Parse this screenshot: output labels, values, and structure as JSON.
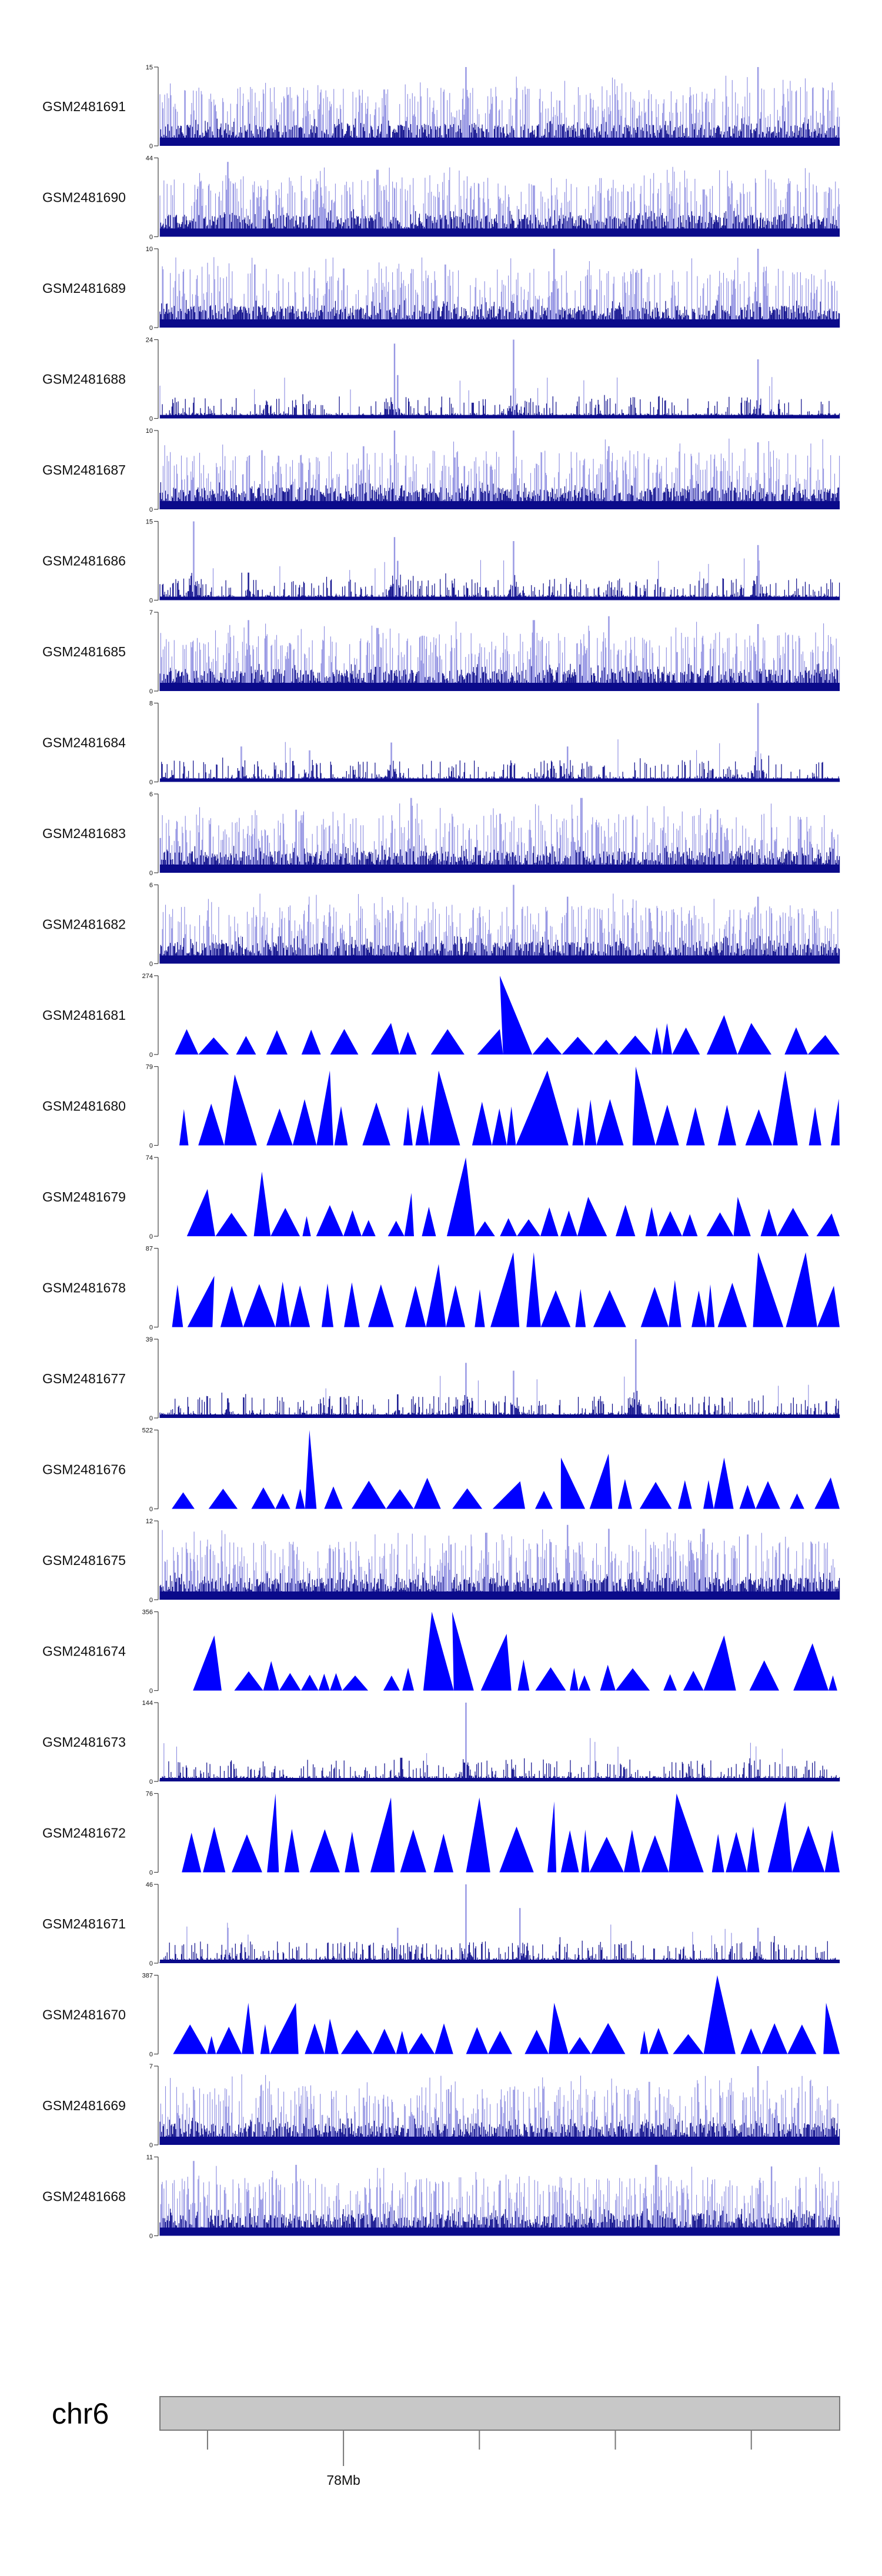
{
  "colors": {
    "dense": "#0a0a8a",
    "dense_light": "#8a8ae0",
    "triangle": "#0000ff",
    "ideogram_fill": "#c8c8c8",
    "ideogram_stroke": "#7a7a7a"
  },
  "chart_data": {
    "type": "area",
    "title": "",
    "chromosome": "chr6",
    "axis_label": "78Mb",
    "tracks": [
      {
        "name": "GSM2481691",
        "ymin": "0",
        "ymax": "15",
        "style": "dense",
        "peaks": [
          [
            0.45,
            1.0
          ],
          [
            0.88,
            1.0
          ],
          [
            0.05,
            0.45
          ],
          [
            0.25,
            0.45
          ],
          [
            0.66,
            0.4
          ],
          [
            0.78,
            0.35
          ]
        ]
      },
      {
        "name": "GSM2481690",
        "ymin": "0",
        "ymax": "44",
        "style": "dense",
        "peaks": [
          [
            0.1,
            0.95
          ],
          [
            0.32,
            0.85
          ],
          [
            0.06,
            0.7
          ],
          [
            0.55,
            0.65
          ],
          [
            0.8,
            0.6
          ]
        ]
      },
      {
        "name": "GSM2481689",
        "ymin": "0",
        "ymax": "10",
        "style": "dense",
        "peaks": [
          [
            0.58,
            1.0
          ],
          [
            0.88,
            1.0
          ],
          [
            0.14,
            0.8
          ],
          [
            0.27,
            0.75
          ],
          [
            0.42,
            0.8
          ],
          [
            0.7,
            0.7
          ]
        ]
      },
      {
        "name": "GSM2481688",
        "ymin": "0",
        "ymax": "24",
        "style": "sparse",
        "peaks": [
          [
            0.345,
            0.95
          ],
          [
            0.52,
            1.0
          ],
          [
            0.88,
            0.75
          ],
          [
            0.35,
            0.55
          ],
          [
            0.05,
            0.2
          ],
          [
            0.46,
            0.2
          ]
        ]
      },
      {
        "name": "GSM2481687",
        "ymin": "0",
        "ymax": "10",
        "style": "dense",
        "peaks": [
          [
            0.345,
            1.0
          ],
          [
            0.52,
            1.0
          ],
          [
            0.15,
            0.75
          ],
          [
            0.3,
            0.8
          ],
          [
            0.66,
            0.8
          ],
          [
            0.88,
            0.85
          ]
        ]
      },
      {
        "name": "GSM2481686",
        "ymin": "0",
        "ymax": "15",
        "style": "sparse",
        "peaks": [
          [
            0.05,
            1.0
          ],
          [
            0.345,
            0.8
          ],
          [
            0.52,
            0.75
          ],
          [
            0.88,
            0.7
          ],
          [
            0.35,
            0.5
          ],
          [
            0.13,
            0.35
          ]
        ]
      },
      {
        "name": "GSM2481685",
        "ymin": "0",
        "ymax": "7",
        "style": "dense",
        "peaks": [
          [
            0.13,
            0.9
          ],
          [
            0.55,
            0.9
          ],
          [
            0.66,
            0.95
          ],
          [
            0.32,
            0.8
          ],
          [
            0.88,
            0.85
          ]
        ]
      },
      {
        "name": "GSM2481684",
        "ymin": "0",
        "ymax": "8",
        "style": "sparse",
        "peaks": [
          [
            0.88,
            1.0
          ],
          [
            0.34,
            0.5
          ],
          [
            0.12,
            0.45
          ],
          [
            0.6,
            0.45
          ],
          [
            0.22,
            0.4
          ]
        ]
      },
      {
        "name": "GSM2481683",
        "ymin": "0",
        "ymax": "6",
        "style": "dense",
        "peaks": [
          [
            0.37,
            0.95
          ],
          [
            0.62,
            0.95
          ],
          [
            0.2,
            0.8
          ],
          [
            0.82,
            0.8
          ],
          [
            0.5,
            0.75
          ]
        ]
      },
      {
        "name": "GSM2481682",
        "ymin": "0",
        "ymax": "6",
        "style": "dense",
        "peaks": [
          [
            0.52,
            1.0
          ],
          [
            0.6,
            0.85
          ],
          [
            0.88,
            0.85
          ],
          [
            0.25,
            0.6
          ],
          [
            0.72,
            0.7
          ]
        ]
      },
      {
        "name": "GSM2481681",
        "ymin": "0",
        "ymax": "274",
        "style": "triangle",
        "peaks": [
          [
            0.52,
            1.0
          ],
          [
            0.83,
            0.5
          ],
          [
            0.87,
            0.4
          ],
          [
            0.34,
            0.4
          ],
          [
            0.5,
            0.3
          ]
        ]
      },
      {
        "name": "GSM2481680",
        "ymin": "0",
        "ymax": "79",
        "style": "triangle",
        "peaks": [
          [
            0.7,
            1.0
          ],
          [
            0.92,
            0.95
          ],
          [
            0.25,
            0.95
          ],
          [
            0.41,
            0.95
          ],
          [
            0.57,
            0.95
          ],
          [
            0.11,
            0.9
          ]
        ]
      },
      {
        "name": "GSM2481679",
        "ymin": "0",
        "ymax": "74",
        "style": "triangle",
        "peaks": [
          [
            0.45,
            1.0
          ],
          [
            0.15,
            0.82
          ],
          [
            0.07,
            0.6
          ],
          [
            0.37,
            0.55
          ],
          [
            0.63,
            0.5
          ],
          [
            0.85,
            0.5
          ]
        ]
      },
      {
        "name": "GSM2481678",
        "ymin": "0",
        "ymax": "87",
        "style": "triangle",
        "peaks": [
          [
            0.52,
            0.95
          ],
          [
            0.55,
            0.95
          ],
          [
            0.88,
            0.95
          ],
          [
            0.08,
            0.65
          ],
          [
            0.41,
            0.8
          ],
          [
            0.95,
            0.95
          ]
        ]
      },
      {
        "name": "GSM2481677",
        "ymin": "0",
        "ymax": "39",
        "style": "sparse",
        "peaks": [
          [
            0.7,
            1.0
          ],
          [
            0.45,
            0.7
          ],
          [
            0.52,
            0.6
          ],
          [
            0.35,
            0.3
          ],
          [
            0.1,
            0.25
          ]
        ]
      },
      {
        "name": "GSM2481676",
        "ymin": "0",
        "ymax": "522",
        "style": "triangle",
        "peaks": [
          [
            0.22,
            1.0
          ],
          [
            0.66,
            0.7
          ],
          [
            0.59,
            0.65
          ],
          [
            0.83,
            0.65
          ],
          [
            0.53,
            0.35
          ]
        ]
      },
      {
        "name": "GSM2481675",
        "ymin": "0",
        "ymax": "12",
        "style": "dense",
        "peaks": [
          [
            0.6,
            0.95
          ],
          [
            0.66,
            0.9
          ],
          [
            0.8,
            0.9
          ],
          [
            0.48,
            0.85
          ],
          [
            0.25,
            0.65
          ]
        ]
      },
      {
        "name": "GSM2481674",
        "ymin": "0",
        "ymax": "356",
        "style": "triangle",
        "peaks": [
          [
            0.43,
            1.0
          ],
          [
            0.08,
            0.7
          ],
          [
            0.4,
            0.7
          ],
          [
            0.51,
            0.72
          ],
          [
            0.83,
            0.7
          ],
          [
            0.96,
            0.6
          ]
        ]
      },
      {
        "name": "GSM2481673",
        "ymin": "0",
        "ymax": "144",
        "style": "sparse",
        "peaks": [
          [
            0.45,
            1.0
          ],
          [
            0.355,
            0.3
          ],
          [
            0.52,
            0.15
          ],
          [
            0.88,
            0.15
          ]
        ]
      },
      {
        "name": "GSM2481672",
        "ymin": "0",
        "ymax": "76",
        "style": "triangle",
        "peaks": [
          [
            0.17,
            1.0
          ],
          [
            0.76,
            1.0
          ],
          [
            0.34,
            0.95
          ],
          [
            0.47,
            0.95
          ],
          [
            0.58,
            0.9
          ],
          [
            0.92,
            0.9
          ]
        ]
      },
      {
        "name": "GSM2481671",
        "ymin": "0",
        "ymax": "46",
        "style": "sparse",
        "peaks": [
          [
            0.45,
            1.0
          ],
          [
            0.53,
            0.7
          ],
          [
            0.35,
            0.45
          ],
          [
            0.1,
            0.45
          ],
          [
            0.88,
            0.45
          ]
        ]
      },
      {
        "name": "GSM2481670",
        "ymin": "0",
        "ymax": "387",
        "style": "triangle",
        "peaks": [
          [
            0.82,
            1.0
          ],
          [
            0.13,
            0.65
          ],
          [
            0.2,
            0.65
          ],
          [
            0.58,
            0.65
          ],
          [
            0.98,
            0.65
          ],
          [
            0.25,
            0.45
          ]
        ]
      },
      {
        "name": "GSM2481669",
        "ymin": "0",
        "ymax": "7",
        "style": "dense",
        "peaks": [
          [
            0.88,
            1.0
          ],
          [
            0.72,
            0.8
          ],
          [
            0.05,
            0.7
          ],
          [
            0.52,
            0.7
          ],
          [
            0.3,
            0.6
          ]
        ]
      },
      {
        "name": "GSM2481668",
        "ymin": "0",
        "ymax": "11",
        "style": "dense",
        "peaks": [
          [
            0.05,
            0.95
          ],
          [
            0.2,
            0.9
          ],
          [
            0.73,
            0.9
          ],
          [
            0.9,
            0.88
          ],
          [
            0.5,
            0.7
          ]
        ]
      }
    ],
    "genome_axis": {
      "major_tick_fraction": 0.27,
      "minor_tick_fractions": [
        0.07,
        0.47,
        0.67,
        0.87
      ]
    }
  }
}
